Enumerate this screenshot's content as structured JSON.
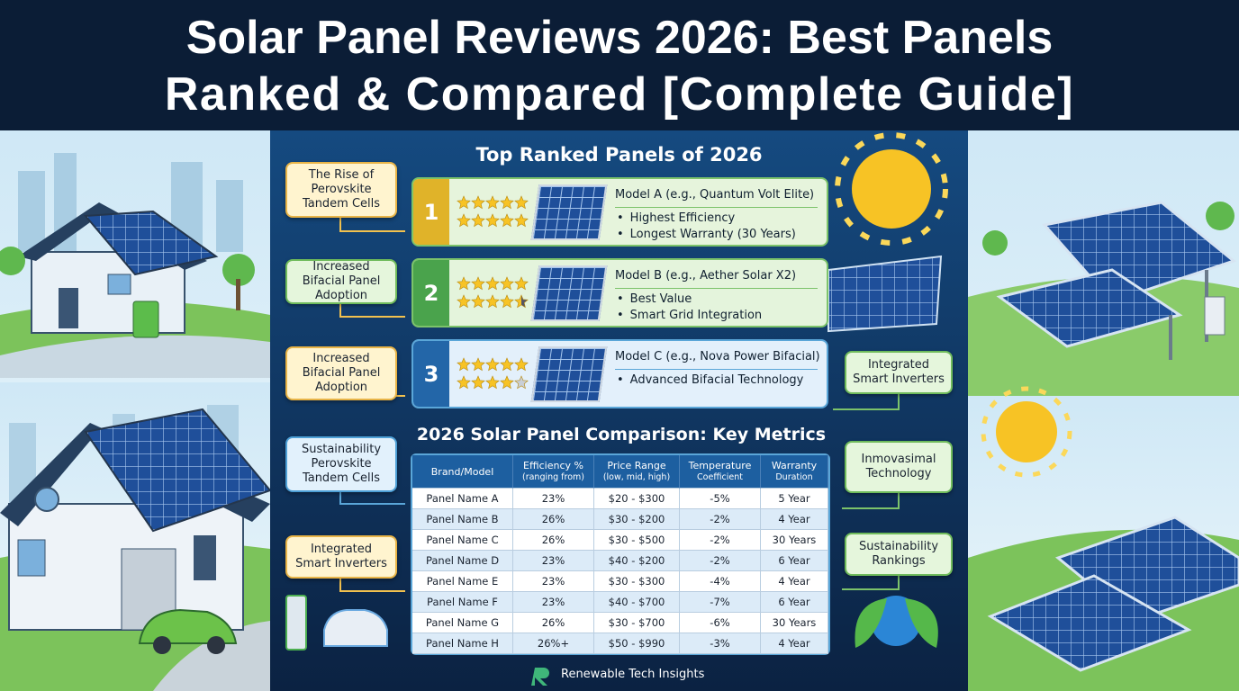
{
  "header": {
    "title": [
      "Solar Panel Reviews 2026: Best Panels",
      "Ranked & Compared [Complete Guide]"
    ]
  },
  "ranked": {
    "title": "Top Ranked Panels of 2026",
    "items": [
      {
        "rank": "1",
        "stars": [
          5,
          5
        ],
        "model": "Model A (e.g., Quantum Volt Elite)",
        "bullets": [
          "Highest Efficiency",
          "Longest Warranty (30 Years)"
        ]
      },
      {
        "rank": "2",
        "stars": [
          5,
          4.5
        ],
        "model": "Model B (e.g., Aether Solar X2)",
        "bullets": [
          "Best Value",
          "Smart Grid Integration"
        ]
      },
      {
        "rank": "3",
        "stars": [
          5,
          4
        ],
        "model": "Model C (e.g., Nova Power Bifacial)",
        "bullets": [
          "Advanced Bifacial Technology"
        ]
      }
    ]
  },
  "callouts": {
    "left": [
      "The Rise of Perovskite Tandem Cells",
      "Increased Bifacial Panel Adoption",
      "Increased Bifacial Panel Adoption",
      "Sustainability Perovskite Tandem Cells",
      "Integrated Smart Inverters"
    ],
    "right": [
      "Integrated Smart Inverters",
      "Inmovasimal Technology",
      "Sustainability Rankings"
    ]
  },
  "table": {
    "title": "2026 Solar Panel Comparison: Key Metrics",
    "headers": [
      [
        "Brand/Model"
      ],
      [
        "Efficiency %",
        "(ranging from)"
      ],
      [
        "Price Range",
        "(low, mid, high)"
      ],
      [
        "Temperature",
        "Coefficient"
      ],
      [
        "Warranty",
        "Duration"
      ]
    ],
    "rows": [
      [
        "Panel Name A",
        "23%",
        "$20 - $300",
        "-5%",
        "5 Year"
      ],
      [
        "Panel Name B",
        "26%",
        "$30 - $200",
        "-2%",
        "4 Year"
      ],
      [
        "Panel Name C",
        "26%",
        "$30 - $500",
        "-2%",
        "30 Years"
      ],
      [
        "Panel Name D",
        "23%",
        "$40 - $200",
        "-2%",
        "6 Year"
      ],
      [
        "Panel Name E",
        "23%",
        "$30 - $300",
        "-4%",
        "4 Year"
      ],
      [
        "Panel Name F",
        "23%",
        "$40 - $700",
        "-7%",
        "6 Year"
      ],
      [
        "Panel Name G",
        "26%",
        "$30 - $700",
        "-6%",
        "30 Years"
      ],
      [
        "Panel Name H",
        "26%+",
        "$50 - $990",
        "-3%",
        "4 Year"
      ]
    ]
  },
  "footer": {
    "brand": "Renewable Tech Insights"
  }
}
